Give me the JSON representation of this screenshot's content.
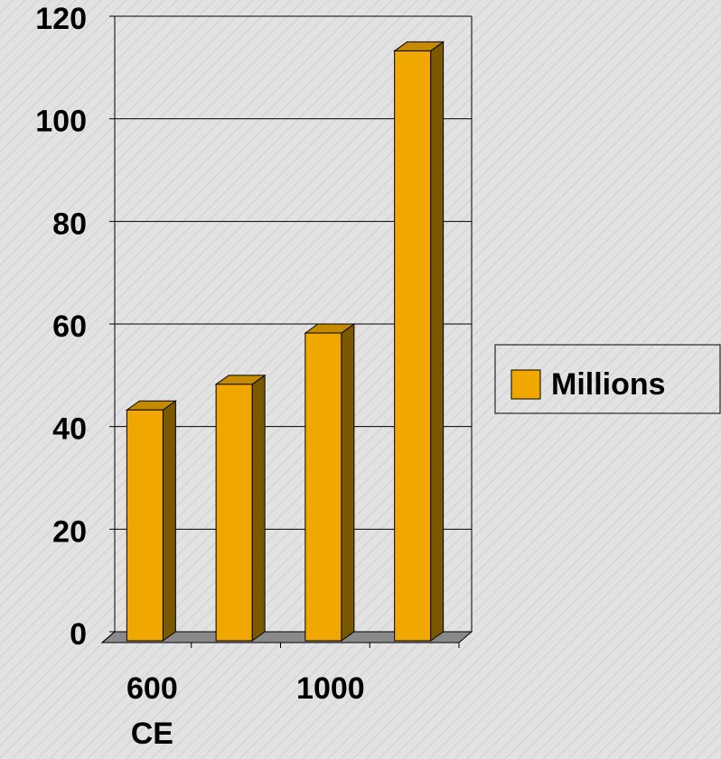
{
  "chart_data": {
    "type": "bar3d",
    "categories": [
      "600 CE",
      null,
      "1000",
      null
    ],
    "series": [
      {
        "name": "Millions",
        "color": "#f0a800",
        "values": [
          45,
          50,
          60,
          115
        ]
      }
    ],
    "ylim": [
      0,
      120
    ],
    "yticks": [
      0,
      20,
      40,
      60,
      80,
      100,
      120
    ],
    "grid": true,
    "legend": "right"
  }
}
